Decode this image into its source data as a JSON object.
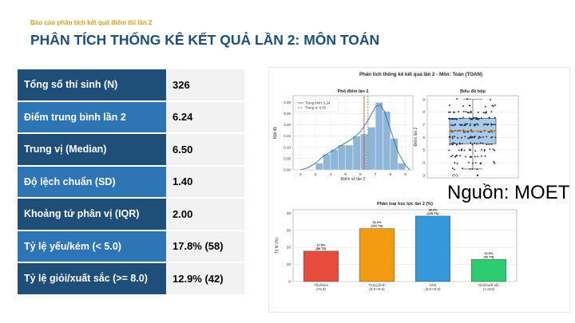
{
  "header": {
    "subtitle": "Báo cáo phân tích kết quả điểm thi lần 2",
    "title": "PHÂN TÍCH THỐNG KÊ KẾT QUẢ LẦN 2: MÔN TOÁN"
  },
  "stats": [
    {
      "label": "Tổng số thí sinh (N)",
      "value": "326",
      "color": "#1f4e79"
    },
    {
      "label": "Điểm trung bình lần 2",
      "value": "6.24",
      "color": "#2e75b6"
    },
    {
      "label": "Trung vị (Median)",
      "value": "6.50",
      "color": "#1f4e79"
    },
    {
      "label": "Độ lệch chuẩn (SD)",
      "value": "1.40",
      "color": "#2e75b6"
    },
    {
      "label": "Khoảng tứ phân vị (IQR)",
      "value": "2.00",
      "color": "#1f4e79"
    },
    {
      "label": "Tỷ lệ yếu/kém (< 5.0)",
      "value": "17.8% (58)",
      "color": "#2e75b6"
    },
    {
      "label": "Tỷ lệ giỏi/xuất sắc (>= 8.0)",
      "value": "12.9% (42)",
      "color": "#1f4e79"
    }
  ],
  "figure": {
    "title": "Phân tích thống kê kết quả lần 2 - Môn: Toán (TOAN)",
    "source": "Nguồn: MOET"
  },
  "chart_data": [
    {
      "type": "bar",
      "title": "Phổ điểm lần 2",
      "xlabel": "Điểm số lần 2",
      "ylabel": "Mật độ",
      "xlim": [
        1.5,
        9.5
      ],
      "ylim": [
        0,
        0.33
      ],
      "bin_edges": [
        3.0,
        3.5,
        4.0,
        4.5,
        5.0,
        5.5,
        6.0,
        6.5,
        7.0,
        7.5,
        8.0,
        8.5,
        9.0
      ],
      "values": [
        0.03,
        0.07,
        0.09,
        0.11,
        0.11,
        0.15,
        0.16,
        0.19,
        0.3,
        0.26,
        0.14,
        0.03
      ],
      "density_curve": [
        [
          2.0,
          0.0
        ],
        [
          2.5,
          0.01
        ],
        [
          3.0,
          0.03
        ],
        [
          3.5,
          0.06
        ],
        [
          4.0,
          0.08
        ],
        [
          4.5,
          0.1
        ],
        [
          5.0,
          0.12
        ],
        [
          5.5,
          0.14
        ],
        [
          6.0,
          0.17
        ],
        [
          6.5,
          0.22
        ],
        [
          7.0,
          0.28
        ],
        [
          7.3,
          0.29
        ],
        [
          7.6,
          0.26
        ],
        [
          8.0,
          0.18
        ],
        [
          8.5,
          0.08
        ],
        [
          9.0,
          0.02
        ],
        [
          9.3,
          0.0
        ]
      ],
      "xticks": [
        2,
        3,
        4,
        5,
        6,
        7,
        8,
        9
      ],
      "yticks": [
        0.0,
        0.05,
        0.1,
        0.15,
        0.2,
        0.25,
        0.3
      ],
      "reference_lines": [
        {
          "name": "Trung bình: 6.24",
          "x": 6.24,
          "color": "#e74c3c"
        },
        {
          "name": "Trung vị: 6.50",
          "x": 6.5,
          "color": "#27ae60"
        }
      ],
      "legend": "top-left",
      "grid": true
    },
    {
      "type": "scatter",
      "title": "Biểu đồ hộp",
      "ylabel": "Điểm lần 2",
      "ylim": [
        2.8,
        9.3
      ],
      "yticks": [
        3,
        4,
        5,
        6,
        7,
        8,
        9
      ],
      "box": {
        "q1": 5.5,
        "median": 6.5,
        "q3": 7.5,
        "whisker_low": 3.5,
        "whisker_high": 9.0
      },
      "outliers": [
        3.0,
        3.0
      ],
      "grid": true
    },
    {
      "type": "bar",
      "title": "Phân loại học lực lần 2 (%)",
      "ylabel": "Tỷ lệ (%)",
      "ylim": [
        0,
        42
      ],
      "yticks": [
        0,
        10,
        20,
        30,
        40
      ],
      "categories": [
        {
          "name": "Yếu/Kém",
          "range": "(<5.0)"
        },
        {
          "name": "Trung bình",
          "range": "(5.0-<6.5)"
        },
        {
          "name": "Khá",
          "range": "(6.5-<8.0)"
        },
        {
          "name": "Giỏi/Xuất sắc",
          "range": "(>=8.0)"
        }
      ],
      "values": [
        17.8,
        31.0,
        38.3,
        12.9
      ],
      "value_labels": [
        "17.8%",
        "31.0%",
        "38.3%",
        "12.9%"
      ],
      "count_labels": [
        "(58 TS)",
        "(101 TS)",
        "(125 TS)",
        "(42 TS)"
      ],
      "colors": [
        "#e74c3c",
        "#f39c12",
        "#3498db",
        "#2ecc71"
      ],
      "grid": true
    }
  ]
}
